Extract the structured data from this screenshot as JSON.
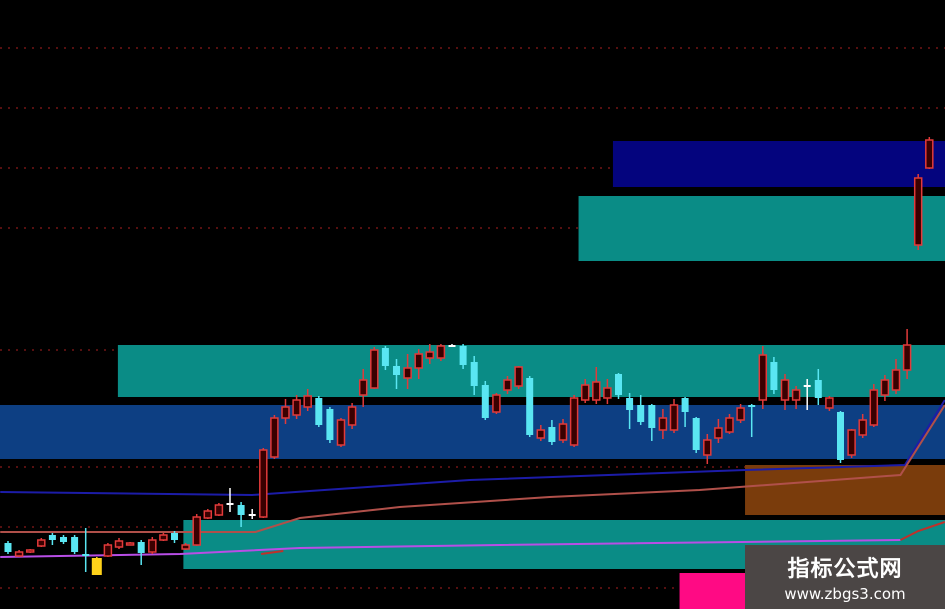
{
  "chart_data": {
    "type": "candlestick",
    "title": "",
    "xlabel": "",
    "ylabel": "",
    "x_units": "bar index",
    "ylim": [
      0,
      61
    ],
    "grid": "horizontal dotted red",
    "gridlines": [
      56.1,
      50.1,
      44.1,
      38.1,
      25.9,
      14.2,
      8.2,
      2.1
    ],
    "colors": {
      "up": "#e23a3a",
      "down": "#5ae6f2",
      "doji": "#ffffff",
      "signal": "#ffd21a",
      "grid": "#8a1a1a"
    },
    "candle_fields": [
      "open",
      "high",
      "low",
      "close",
      "color"
    ],
    "candles": [
      [
        6.6,
        6.8,
        5.5,
        5.7,
        "down"
      ],
      [
        5.3,
        5.9,
        5.2,
        5.7,
        "up"
      ],
      [
        5.7,
        6.0,
        5.6,
        5.9,
        "up"
      ],
      [
        6.3,
        7.1,
        6.2,
        6.9,
        "up"
      ],
      [
        7.4,
        7.6,
        6.4,
        6.9,
        "down"
      ],
      [
        7.2,
        7.4,
        6.5,
        6.7,
        "down"
      ],
      [
        7.2,
        7.4,
        5.5,
        5.7,
        "down"
      ],
      [
        5.5,
        8.1,
        3.7,
        5.4,
        "down"
      ],
      [
        5.1,
        5.2,
        3.4,
        3.4,
        "signal"
      ],
      [
        5.3,
        6.6,
        5.2,
        6.4,
        "up"
      ],
      [
        6.2,
        7.1,
        6.0,
        6.8,
        "up"
      ],
      [
        6.6,
        6.7,
        6.5,
        6.6,
        "up"
      ],
      [
        6.7,
        6.9,
        4.4,
        5.6,
        "down"
      ],
      [
        5.7,
        7.2,
        5.5,
        6.9,
        "up"
      ],
      [
        6.9,
        7.6,
        6.8,
        7.4,
        "up"
      ],
      [
        7.6,
        7.8,
        6.6,
        6.9,
        "down"
      ],
      [
        6.0,
        6.6,
        5.9,
        6.4,
        "up"
      ],
      [
        6.4,
        9.5,
        6.3,
        9.2,
        "up"
      ],
      [
        9.1,
        10.0,
        9.0,
        9.8,
        "up"
      ],
      [
        9.4,
        10.6,
        9.3,
        10.4,
        "up"
      ],
      [
        10.6,
        12.1,
        9.7,
        10.6,
        "doji"
      ],
      [
        10.4,
        10.7,
        8.2,
        9.4,
        "down"
      ],
      [
        9.5,
        10.0,
        9.0,
        9.4,
        "doji"
      ],
      [
        9.2,
        16.1,
        9.1,
        15.9,
        "up"
      ],
      [
        15.2,
        19.4,
        15.0,
        19.1,
        "up"
      ],
      [
        19.1,
        21.0,
        18.5,
        20.2,
        "up"
      ],
      [
        19.4,
        21.4,
        19.0,
        20.9,
        "up"
      ],
      [
        20.2,
        22.0,
        19.8,
        21.3,
        "up"
      ],
      [
        21.1,
        21.3,
        18.2,
        18.4,
        "down"
      ],
      [
        20.0,
        20.2,
        16.6,
        16.9,
        "down"
      ],
      [
        16.4,
        19.1,
        16.2,
        18.9,
        "up"
      ],
      [
        18.4,
        20.6,
        18.0,
        20.2,
        "up"
      ],
      [
        21.4,
        24.0,
        20.2,
        22.9,
        "up"
      ],
      [
        22.1,
        26.2,
        22.0,
        25.9,
        "up"
      ],
      [
        26.1,
        26.3,
        23.9,
        24.3,
        "down"
      ],
      [
        24.3,
        25.0,
        22.0,
        23.4,
        "down"
      ],
      [
        23.1,
        25.5,
        22.0,
        24.1,
        "up"
      ],
      [
        24.1,
        26.0,
        23.0,
        25.5,
        "up"
      ],
      [
        25.1,
        26.5,
        24.5,
        25.7,
        "up"
      ],
      [
        25.1,
        26.5,
        24.8,
        26.3,
        "up"
      ],
      [
        26.4,
        26.5,
        26.2,
        26.3,
        "doji"
      ],
      [
        26.3,
        26.5,
        24.0,
        24.4,
        "down"
      ],
      [
        24.7,
        25.3,
        21.4,
        22.3,
        "down"
      ],
      [
        22.4,
        22.8,
        18.9,
        19.1,
        "down"
      ],
      [
        19.7,
        21.6,
        19.5,
        21.4,
        "up"
      ],
      [
        21.9,
        23.3,
        21.5,
        22.9,
        "up"
      ],
      [
        22.3,
        24.3,
        22.0,
        24.2,
        "up"
      ],
      [
        23.1,
        23.3,
        17.2,
        17.4,
        "down"
      ],
      [
        17.1,
        18.4,
        16.8,
        17.9,
        "up"
      ],
      [
        18.2,
        18.9,
        16.4,
        16.7,
        "down"
      ],
      [
        16.9,
        19.0,
        16.6,
        18.5,
        "up"
      ],
      [
        16.4,
        21.4,
        16.2,
        21.1,
        "up"
      ],
      [
        20.9,
        23.0,
        20.6,
        22.4,
        "up"
      ],
      [
        20.9,
        24.2,
        20.5,
        22.7,
        "up"
      ],
      [
        21.1,
        23.0,
        20.5,
        22.1,
        "up"
      ],
      [
        23.5,
        23.6,
        21.0,
        21.4,
        "down"
      ],
      [
        21.1,
        21.6,
        18.0,
        19.9,
        "down"
      ],
      [
        20.4,
        21.4,
        18.4,
        18.7,
        "down"
      ],
      [
        20.4,
        20.5,
        16.8,
        18.1,
        "down"
      ],
      [
        17.9,
        20.0,
        17.0,
        19.1,
        "up"
      ],
      [
        17.9,
        21.0,
        17.6,
        20.4,
        "up"
      ],
      [
        21.1,
        21.2,
        18.2,
        19.7,
        "down"
      ],
      [
        19.1,
        19.2,
        15.6,
        15.9,
        "down"
      ],
      [
        15.4,
        17.5,
        14.5,
        16.9,
        "up"
      ],
      [
        17.1,
        19.0,
        16.6,
        18.1,
        "up"
      ],
      [
        17.7,
        19.5,
        17.5,
        19.1,
        "up"
      ],
      [
        18.9,
        20.5,
        18.6,
        20.1,
        "up"
      ],
      [
        20.4,
        20.5,
        17.2,
        20.2,
        "down"
      ],
      [
        20.9,
        26.3,
        20.0,
        25.4,
        "up"
      ],
      [
        24.7,
        25.2,
        21.5,
        21.9,
        "down"
      ],
      [
        20.9,
        23.5,
        19.9,
        22.9,
        "up"
      ],
      [
        20.9,
        22.3,
        20.0,
        21.9,
        "up"
      ],
      [
        22.4,
        23.0,
        19.9,
        22.3,
        "doji"
      ],
      [
        22.9,
        24.0,
        20.4,
        21.1,
        "down"
      ],
      [
        20.1,
        21.3,
        19.8,
        21.1,
        "up"
      ],
      [
        19.7,
        19.8,
        14.6,
        14.9,
        "down"
      ],
      [
        15.4,
        18.0,
        15.1,
        17.9,
        "up"
      ],
      [
        17.4,
        19.5,
        17.1,
        18.9,
        "up"
      ],
      [
        18.4,
        22.5,
        18.2,
        21.9,
        "up"
      ],
      [
        21.4,
        23.4,
        20.8,
        22.9,
        "up"
      ],
      [
        21.9,
        25.0,
        21.5,
        23.9,
        "up"
      ],
      [
        23.9,
        28.0,
        23.0,
        26.4,
        "up"
      ],
      [
        36.4,
        43.5,
        35.9,
        43.1,
        "up"
      ],
      [
        44.1,
        47.2,
        44.0,
        46.9,
        "up"
      ]
    ],
    "zones": [
      {
        "from": 54.5,
        "to": 85,
        "low": 42.2,
        "high": 46.8,
        "color": "#04047e"
      },
      {
        "from": 51.4,
        "to": 85,
        "low": 34.8,
        "high": 41.3,
        "color": "#0a8c86"
      },
      {
        "from": 9.9,
        "to": 85,
        "low": 21.2,
        "high": 26.4,
        "color": "#0a8c86"
      },
      {
        "from": -1,
        "to": 85,
        "low": 15.0,
        "high": 20.4,
        "color": "#0d3f83"
      },
      {
        "from": 66.4,
        "to": 85,
        "low": 9.4,
        "high": 14.4,
        "color": "#7a3c0c"
      },
      {
        "from": 15.8,
        "to": 85,
        "low": 4.0,
        "high": 8.9,
        "color": "#0a8c86"
      },
      {
        "from": 60.5,
        "to": 66.4,
        "low": 0,
        "high": 3.6,
        "color": "#ff0a84"
      }
    ],
    "lines": [
      {
        "color": "#1c1ca8",
        "points": [
          [
            -0.7,
            11.7
          ],
          [
            22,
            11.4
          ],
          [
            41.6,
            12.9
          ],
          [
            66.4,
            13.9
          ],
          [
            80.8,
            14.4
          ],
          [
            84.4,
            20.9
          ]
        ]
      },
      {
        "color": "#b0504a",
        "points": [
          [
            -0.7,
            7.7
          ],
          [
            22.3,
            7.7
          ],
          [
            26.3,
            9.1
          ],
          [
            35.3,
            10.2
          ],
          [
            48.8,
            11.2
          ],
          [
            62.3,
            11.9
          ],
          [
            76.8,
            13.1
          ],
          [
            80.4,
            13.4
          ],
          [
            84.4,
            20.4
          ]
        ]
      },
      {
        "color": "#b84ee6",
        "points": [
          [
            -0.7,
            5.2
          ],
          [
            15.5,
            5.5
          ],
          [
            26.3,
            6.1
          ],
          [
            44.3,
            6.4
          ],
          [
            80.4,
            6.9
          ]
        ]
      },
      {
        "color": "#c0302a",
        "points": [
          [
            80.4,
            6.9
          ],
          [
            82,
            7.8
          ],
          [
            84.4,
            8.7
          ]
        ]
      },
      {
        "color": "#c0302a",
        "points": [
          [
            22.8,
            5.5
          ],
          [
            24.8,
            5.8
          ]
        ]
      }
    ]
  },
  "watermark": {
    "title": "指标公式网",
    "url": "www.zbgs3.com"
  }
}
